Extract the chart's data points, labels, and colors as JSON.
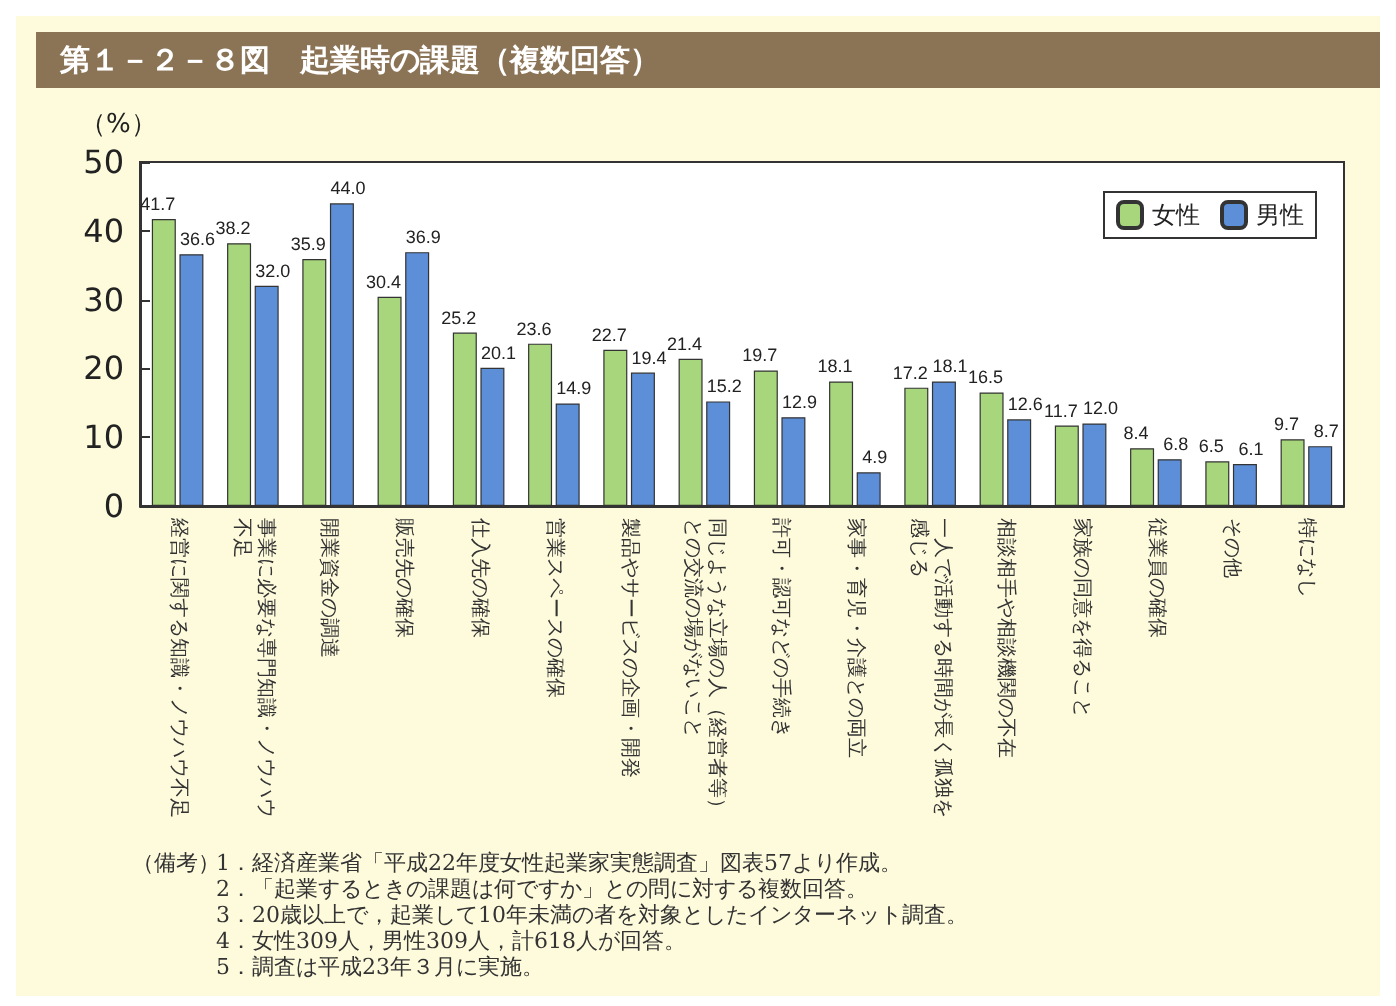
{
  "chart_data": {
    "type": "bar",
    "title": "第１－２－８図　起業時の課題（複数回答）",
    "ylabel": "（%）",
    "categories": [
      "経営に関する知識・ノウハウ不足",
      "事業に必要な専門知識・ノウハウ不足",
      "開業資金の調達",
      "販売先の確保",
      "仕入先の確保",
      "営業スペースの確保",
      "製品やサービスの企画・開発",
      "同じような立場の人（経営者等）との交流の場がないこと",
      "許可・認可などの手続き",
      "家事・育児・介護との両立",
      "一人で活動する時間が長く孤独を感じる",
      "相談相手や相談機関の不在",
      "家族の同意を得ること",
      "従業員の確保",
      "その他",
      "特になし"
    ],
    "series": [
      {
        "name": "女性",
        "color": "#a8d67c",
        "values": [
          41.7,
          38.2,
          35.9,
          30.4,
          25.2,
          23.6,
          22.7,
          21.4,
          19.7,
          18.1,
          17.2,
          16.5,
          11.7,
          8.4,
          6.5,
          9.7
        ],
        "value_labels": [
          "41.7",
          "38.2",
          "35.9",
          "30.4",
          "25.2",
          "23.6",
          "22.7",
          "21.4",
          "19.7",
          "18.1",
          "17.2",
          "16.5",
          "11.7",
          "8.4",
          "6.5",
          "9.7"
        ]
      },
      {
        "name": "男性",
        "color": "#5d8fd8",
        "values": [
          36.6,
          32.0,
          44.0,
          36.9,
          20.1,
          14.9,
          19.4,
          15.2,
          12.9,
          4.9,
          18.1,
          12.6,
          12.0,
          6.8,
          6.1,
          8.7
        ],
        "value_labels": [
          "36.6",
          "32.0",
          "44.0",
          "36.9",
          "20.1",
          "14.9",
          "19.4",
          "15.2",
          "12.9",
          "4.9",
          "18.1",
          "12.6",
          "12.0",
          "6.8",
          "6.1",
          "8.7"
        ]
      }
    ],
    "ylim": [
      0,
      50
    ],
    "yticks": [
      0,
      10,
      20,
      30,
      40,
      50
    ],
    "legend": "top right",
    "annotations": [
      "（備考）",
      "1．経済産業省「平成22年度女性起業家実態調査」図表57より作成。",
      "2．「起業するときの課題は何ですか」との問に対する複数回答。",
      "3．20歳以上で，起業して10年未満の者を対象としたインターネット調査。",
      "4．女性309人，男性309人，計618人が回答。",
      "5．調査は平成23年３月に実施。"
    ]
  }
}
